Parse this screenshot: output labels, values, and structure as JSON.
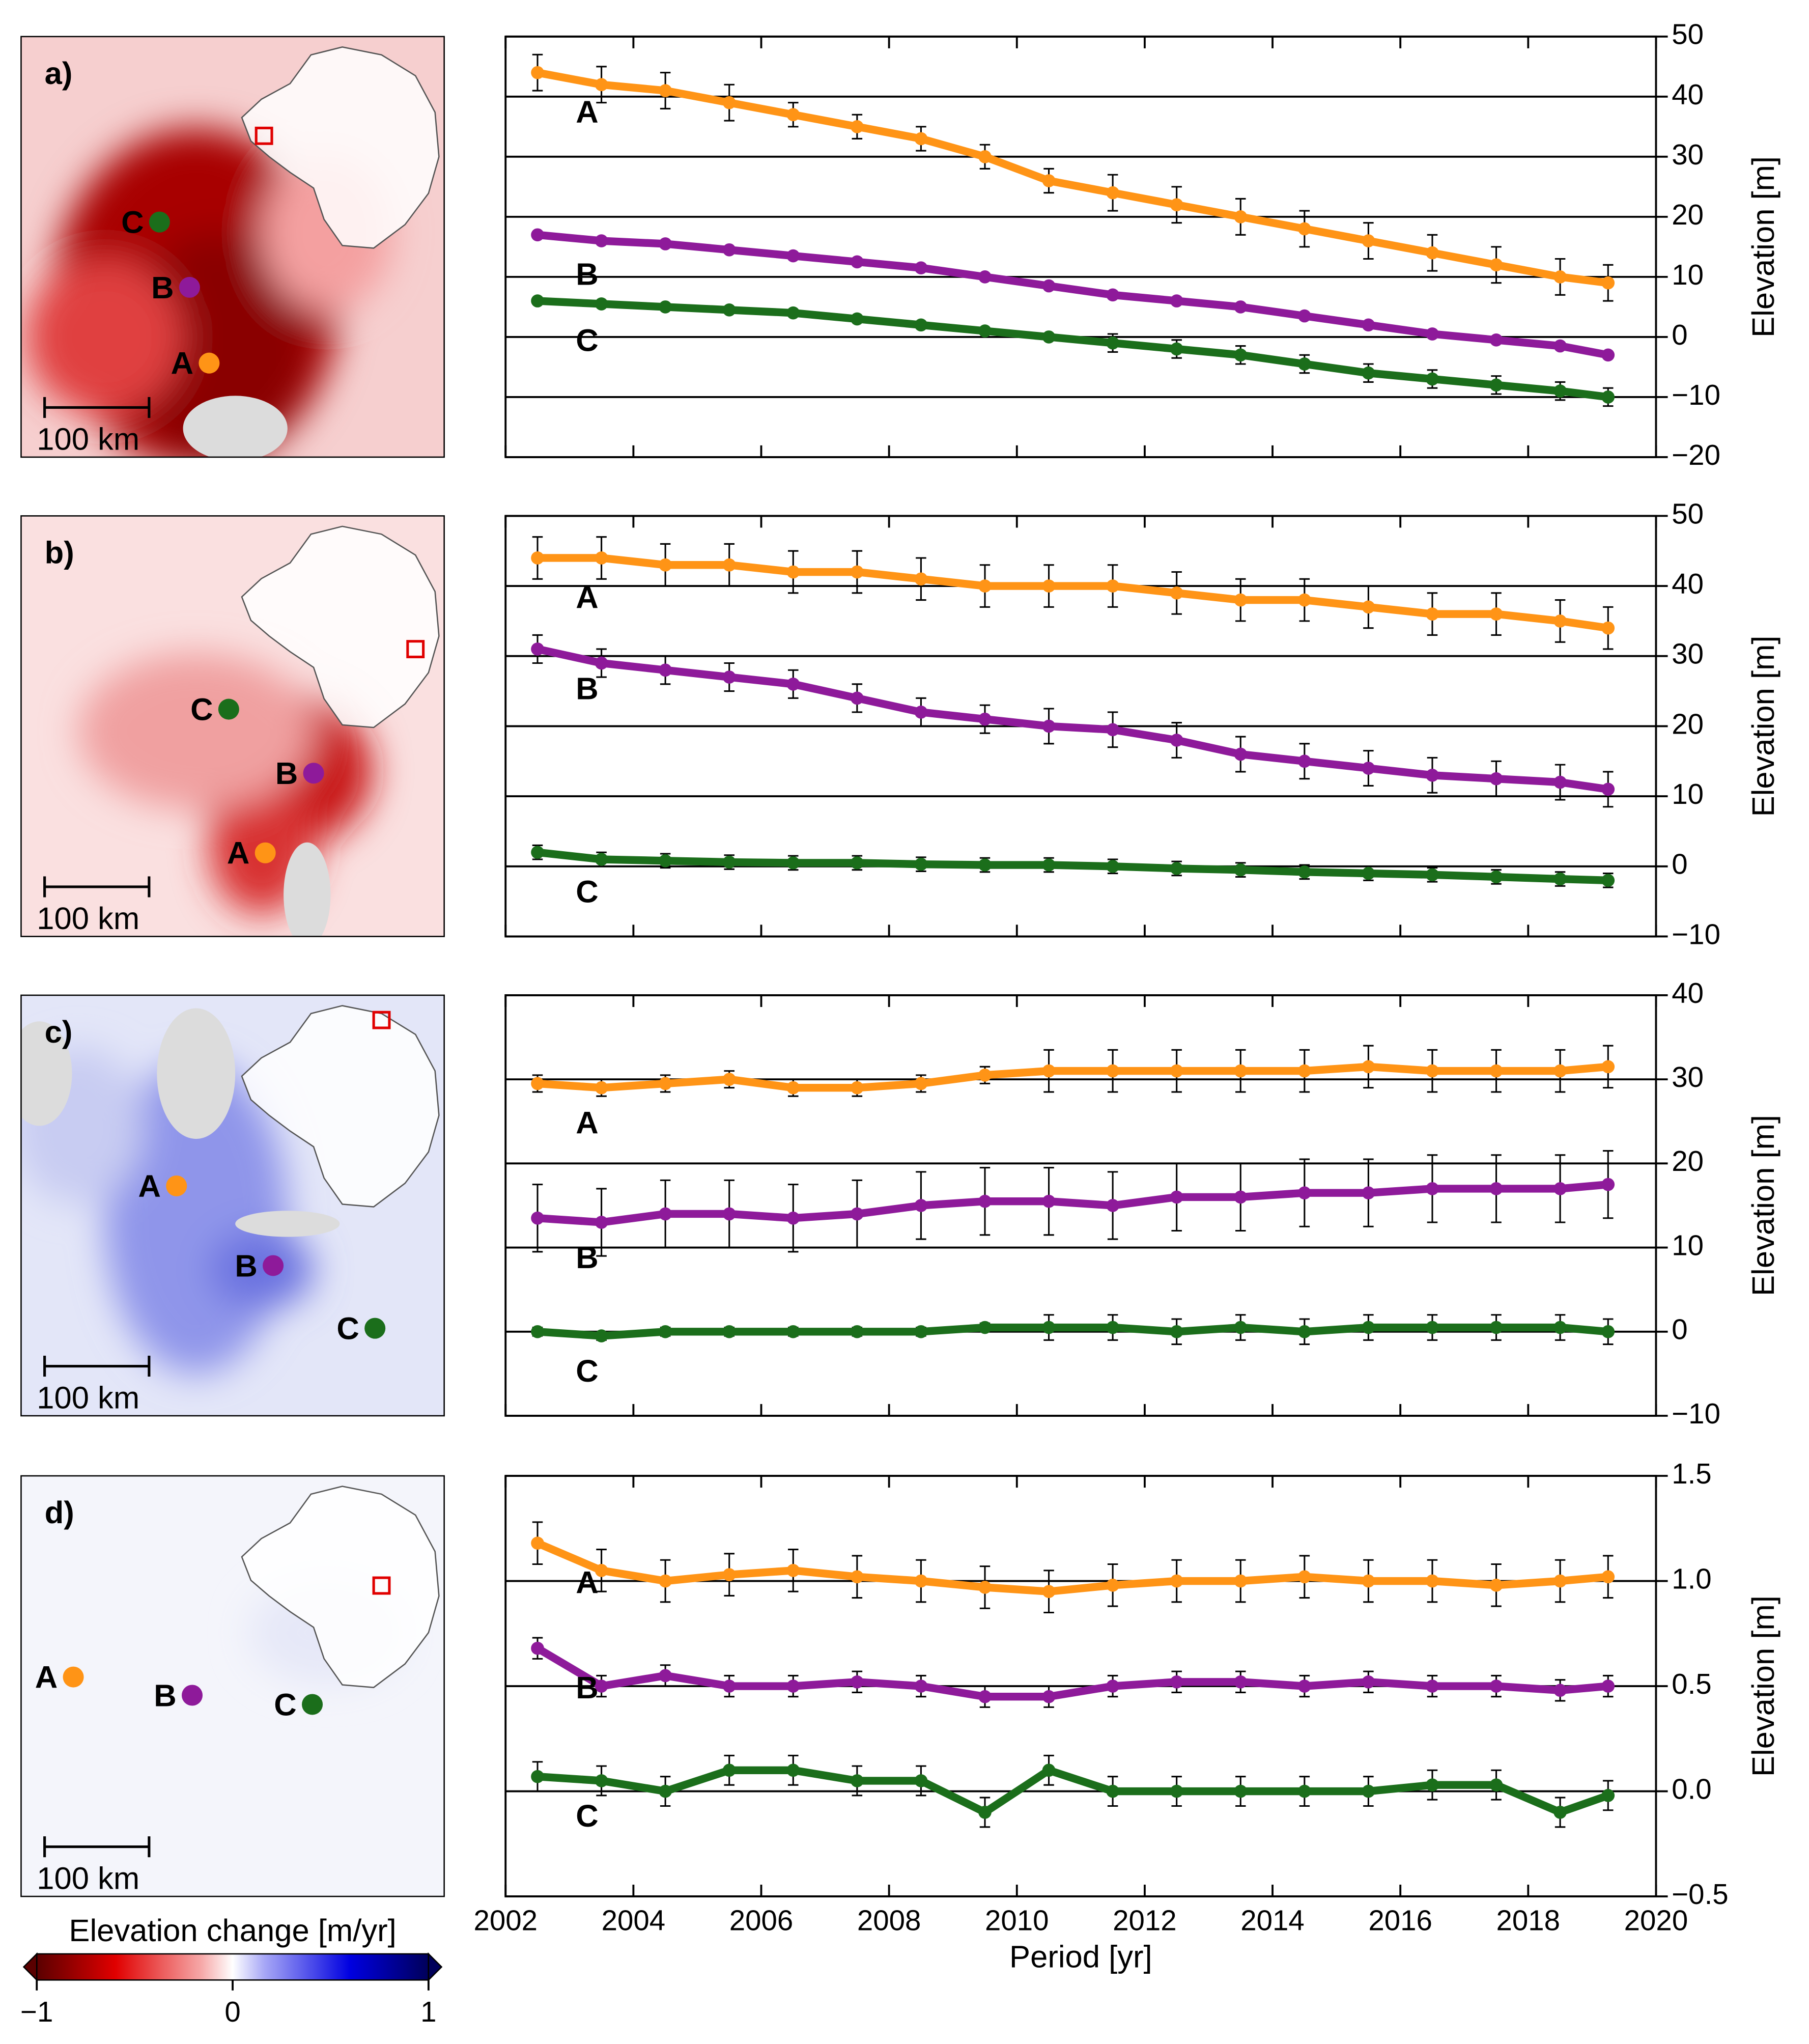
{
  "chart_data": [
    {
      "type": "line",
      "panel": "a)",
      "ylabel": "Elevation [m]",
      "x": [
        2002.5,
        2003.5,
        2004.5,
        2005.5,
        2006.5,
        2007.5,
        2008.5,
        2009.5,
        2010.5,
        2011.5,
        2012.5,
        2013.5,
        2014.5,
        2015.5,
        2016.5,
        2017.5,
        2018.5,
        2019.25
      ],
      "xlim": [
        2002,
        2020
      ],
      "xticks": [
        2002,
        2004,
        2006,
        2008,
        2010,
        2012,
        2014,
        2016,
        2018,
        2020
      ],
      "ylim": [
        -20,
        50
      ],
      "yticks": [
        {
          "value": -20,
          "label": "−20"
        },
        {
          "value": -10,
          "label": "−10"
        },
        0,
        10,
        20,
        30,
        40,
        50
      ],
      "grid": true,
      "series": [
        {
          "name": "A",
          "color": "#ff9416",
          "values": [
            44,
            42,
            41,
            39,
            37,
            35,
            33,
            30,
            26,
            24,
            22,
            20,
            18,
            16,
            14,
            12,
            10,
            9
          ],
          "errors": [
            3,
            3,
            3,
            3,
            2,
            2,
            2,
            2,
            2,
            3,
            3,
            3,
            3,
            3,
            3,
            3,
            3,
            3
          ]
        },
        {
          "name": "B",
          "color": "#8e1a9a",
          "values": [
            17,
            16,
            15.5,
            14.5,
            13.5,
            12.5,
            11.5,
            10,
            8.5,
            7,
            6,
            5,
            3.5,
            2,
            0.5,
            -0.5,
            -1.5,
            -3
          ],
          "errors": [
            0.3,
            0.3,
            0.3,
            0.3,
            0.3,
            0.3,
            0.3,
            0.3,
            0.3,
            0.3,
            0.3,
            0.3,
            0.3,
            0.3,
            0.3,
            0.3,
            0.3,
            0.3
          ]
        },
        {
          "name": "C",
          "color": "#1b6e1b",
          "values": [
            6,
            5.5,
            5,
            4.5,
            4,
            3,
            2,
            1,
            0,
            -1,
            -2,
            -3,
            -4.5,
            -6,
            -7,
            -8,
            -9,
            -10
          ],
          "errors": [
            0.3,
            0.3,
            0.3,
            0.3,
            0.3,
            0.3,
            0.3,
            0.3,
            0.5,
            1.5,
            1.5,
            1.5,
            1.5,
            1.5,
            1.5,
            1.5,
            1.5,
            1.5
          ]
        }
      ]
    },
    {
      "type": "line",
      "panel": "b)",
      "ylabel": "Elevation [m]",
      "x": [
        2002.5,
        2003.5,
        2004.5,
        2005.5,
        2006.5,
        2007.5,
        2008.5,
        2009.5,
        2010.5,
        2011.5,
        2012.5,
        2013.5,
        2014.5,
        2015.5,
        2016.5,
        2017.5,
        2018.5,
        2019.25
      ],
      "xlim": [
        2002,
        2020
      ],
      "xticks": [
        2002,
        2004,
        2006,
        2008,
        2010,
        2012,
        2014,
        2016,
        2018,
        2020
      ],
      "ylim": [
        -10,
        50
      ],
      "yticks": [
        {
          "value": -10,
          "label": "−10"
        },
        0,
        10,
        20,
        30,
        40,
        50
      ],
      "grid": true,
      "series": [
        {
          "name": "A",
          "color": "#ff9416",
          "values": [
            44,
            44,
            43,
            43,
            42,
            42,
            41,
            40,
            40,
            40,
            39,
            38,
            38,
            37,
            36,
            36,
            35,
            34
          ],
          "errors": [
            3,
            3,
            3,
            3,
            3,
            3,
            3,
            3,
            3,
            3,
            3,
            3,
            3,
            3,
            3,
            3,
            3,
            3
          ]
        },
        {
          "name": "B",
          "color": "#8e1a9a",
          "values": [
            31,
            29,
            28,
            27,
            26,
            24,
            22,
            21,
            20,
            19.5,
            18,
            16,
            15,
            14,
            13,
            12.5,
            12,
            11
          ],
          "errors": [
            2,
            2,
            2,
            2,
            2,
            2,
            2,
            2,
            2.5,
            2.5,
            2.5,
            2.5,
            2.5,
            2.5,
            2.5,
            2.5,
            2.5,
            2.5
          ]
        },
        {
          "name": "C",
          "color": "#1b6e1b",
          "values": [
            2,
            1,
            0.8,
            0.6,
            0.5,
            0.5,
            0.3,
            0.2,
            0.2,
            0,
            -0.3,
            -0.5,
            -0.8,
            -1,
            -1.2,
            -1.5,
            -1.8,
            -2
          ],
          "errors": [
            1,
            1,
            1,
            1,
            1,
            1,
            1,
            1,
            1,
            1,
            1,
            1,
            1,
            1,
            1,
            1,
            1,
            1
          ]
        }
      ]
    },
    {
      "type": "line",
      "panel": "c)",
      "ylabel": "Elevation [m]",
      "x": [
        2002.5,
        2003.5,
        2004.5,
        2005.5,
        2006.5,
        2007.5,
        2008.5,
        2009.5,
        2010.5,
        2011.5,
        2012.5,
        2013.5,
        2014.5,
        2015.5,
        2016.5,
        2017.5,
        2018.5,
        2019.25
      ],
      "xlim": [
        2002,
        2020
      ],
      "xticks": [
        2002,
        2004,
        2006,
        2008,
        2010,
        2012,
        2014,
        2016,
        2018,
        2020
      ],
      "ylim": [
        -10,
        40
      ],
      "yticks": [
        {
          "value": -10,
          "label": "−10"
        },
        0,
        10,
        20,
        30,
        40
      ],
      "grid": true,
      "series": [
        {
          "name": "A",
          "color": "#ff9416",
          "values": [
            29.5,
            29,
            29.5,
            30,
            29,
            29,
            29.5,
            30.5,
            31,
            31,
            31,
            31,
            31,
            31.5,
            31,
            31,
            31,
            31.5
          ],
          "errors": [
            1,
            1,
            1,
            1,
            1,
            1,
            1,
            1,
            2.5,
            2.5,
            2.5,
            2.5,
            2.5,
            2.5,
            2.5,
            2.5,
            2.5,
            2.5
          ]
        },
        {
          "name": "B",
          "color": "#8e1a9a",
          "values": [
            13.5,
            13,
            14,
            14,
            13.5,
            14,
            15,
            15.5,
            15.5,
            15,
            16,
            16,
            16.5,
            16.5,
            17,
            17,
            17,
            17.5
          ],
          "errors": [
            4,
            4,
            4,
            4,
            4,
            4,
            4,
            4,
            4,
            4,
            4,
            4,
            4,
            4,
            4,
            4,
            4,
            4
          ]
        },
        {
          "name": "C",
          "color": "#1b6e1b",
          "values": [
            0,
            -0.5,
            0,
            0,
            0,
            0,
            0,
            0.5,
            0.5,
            0.5,
            0,
            0.5,
            0,
            0.5,
            0.5,
            0.5,
            0.5,
            0
          ],
          "errors": [
            0.5,
            0.5,
            0.5,
            0.5,
            0.5,
            0.5,
            0.5,
            0.5,
            1.5,
            1.5,
            1.5,
            1.5,
            1.5,
            1.5,
            1.5,
            1.5,
            1.5,
            1.5
          ]
        }
      ]
    },
    {
      "type": "line",
      "panel": "d)",
      "ylabel": "Elevation [m]",
      "xlabel": "Period [yr]",
      "show_xtick_labels": true,
      "x": [
        2002.5,
        2003.5,
        2004.5,
        2005.5,
        2006.5,
        2007.5,
        2008.5,
        2009.5,
        2010.5,
        2011.5,
        2012.5,
        2013.5,
        2014.5,
        2015.5,
        2016.5,
        2017.5,
        2018.5,
        2019.25
      ],
      "xlim": [
        2002,
        2020
      ],
      "xticks": [
        2002,
        2004,
        2006,
        2008,
        2010,
        2012,
        2014,
        2016,
        2018,
        2020
      ],
      "ylim": [
        -0.5,
        1.5
      ],
      "yticks": [
        {
          "value": -0.5,
          "label": "−0.5"
        },
        {
          "value": 0,
          "label": "0.0"
        },
        0.5,
        {
          "value": 1,
          "label": "1.0"
        },
        1.5
      ],
      "grid": true,
      "series": [
        {
          "name": "A",
          "color": "#ff9416",
          "values": [
            1.18,
            1.05,
            1.0,
            1.03,
            1.05,
            1.02,
            1.0,
            0.97,
            0.95,
            0.98,
            1.0,
            1.0,
            1.02,
            1.0,
            1.0,
            0.98,
            1.0,
            1.02
          ],
          "errors": [
            0.1,
            0.1,
            0.1,
            0.1,
            0.1,
            0.1,
            0.1,
            0.1,
            0.1,
            0.1,
            0.1,
            0.1,
            0.1,
            0.1,
            0.1,
            0.1,
            0.1,
            0.1
          ]
        },
        {
          "name": "B",
          "color": "#8e1a9a",
          "values": [
            0.68,
            0.5,
            0.55,
            0.5,
            0.5,
            0.52,
            0.5,
            0.45,
            0.45,
            0.5,
            0.52,
            0.52,
            0.5,
            0.52,
            0.5,
            0.5,
            0.48,
            0.5
          ],
          "errors": [
            0.05,
            0.05,
            0.05,
            0.05,
            0.05,
            0.05,
            0.05,
            0.05,
            0.05,
            0.05,
            0.05,
            0.05,
            0.05,
            0.05,
            0.05,
            0.05,
            0.05,
            0.05
          ]
        },
        {
          "name": "C",
          "color": "#1b6e1b",
          "values": [
            0.07,
            0.05,
            0.0,
            0.1,
            0.1,
            0.05,
            0.05,
            -0.1,
            0.1,
            0.0,
            0.0,
            0.0,
            0.0,
            0.0,
            0.03,
            0.03,
            -0.1,
            -0.02
          ],
          "errors": [
            0.07,
            0.07,
            0.07,
            0.07,
            0.07,
            0.07,
            0.07,
            0.07,
            0.07,
            0.07,
            0.07,
            0.07,
            0.07,
            0.07,
            0.07,
            0.07,
            0.07,
            0.07
          ]
        }
      ]
    }
  ],
  "scale_bar": "100 km",
  "colorbar": {
    "label": "Elevation change [m/yr]",
    "lim": [
      -1,
      1
    ],
    "ticks": [
      {
        "value": -1,
        "label": "−1"
      },
      0,
      1
    ]
  }
}
